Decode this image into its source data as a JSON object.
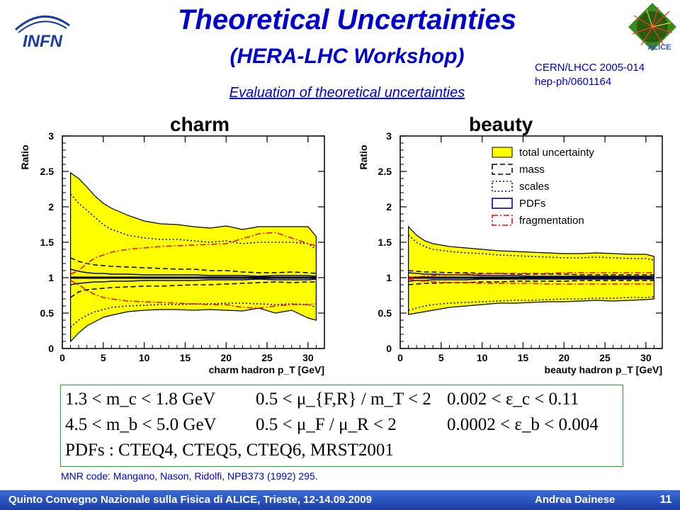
{
  "header": {
    "title": "Theoretical Uncertainties",
    "subtitle": "(HERA-LHC Workshop)",
    "subheading": "Evaluation of theoretical uncertainties",
    "ref_line1": "CERN/LHCC 2005-014",
    "ref_line2": "hep-ph/0601164",
    "logo_text": "INFN",
    "alice_logo_text": "ALICE"
  },
  "chart_data": [
    {
      "type": "area",
      "title": "charm",
      "xlabel": "charm hadron p_T [GeV]",
      "ylabel": "Ratio",
      "xlim": [
        0,
        32
      ],
      "ylim": [
        0,
        3
      ],
      "xticks": [
        0,
        5,
        10,
        15,
        20,
        25,
        30
      ],
      "yticks": [
        0,
        0.5,
        1,
        1.5,
        2,
        2.5,
        3
      ],
      "x": [
        1,
        2,
        3,
        4,
        5,
        6,
        8,
        10,
        12,
        14,
        16,
        18,
        20,
        22,
        24,
        26,
        28,
        30,
        31
      ],
      "series": [
        {
          "name": "total uncertainty",
          "style": "band",
          "upper": [
            2.48,
            2.4,
            2.28,
            2.15,
            2.05,
            1.98,
            1.88,
            1.8,
            1.76,
            1.75,
            1.72,
            1.7,
            1.73,
            1.68,
            1.72,
            1.72,
            1.72,
            1.72,
            1.58
          ],
          "lower": [
            0.1,
            0.22,
            0.32,
            0.38,
            0.44,
            0.47,
            0.52,
            0.54,
            0.55,
            0.55,
            0.54,
            0.55,
            0.54,
            0.53,
            0.57,
            0.5,
            0.54,
            0.43,
            0.4
          ]
        },
        {
          "name": "mass",
          "style": "dashed",
          "upper": [
            1.28,
            1.23,
            1.2,
            1.18,
            1.17,
            1.16,
            1.15,
            1.14,
            1.13,
            1.12,
            1.12,
            1.1,
            1.1,
            1.08,
            1.07,
            1.07,
            1.08,
            1.07,
            1.06
          ],
          "lower": [
            0.72,
            0.8,
            0.83,
            0.84,
            0.85,
            0.86,
            0.87,
            0.88,
            0.88,
            0.89,
            0.9,
            0.9,
            0.91,
            0.92,
            0.93,
            0.94,
            0.93,
            0.94,
            0.94
          ]
        },
        {
          "name": "scales",
          "style": "dotted",
          "upper": [
            2.18,
            2.05,
            1.95,
            1.85,
            1.75,
            1.68,
            1.6,
            1.56,
            1.54,
            1.54,
            1.52,
            1.5,
            1.52,
            1.48,
            1.5,
            1.5,
            1.5,
            1.48,
            1.4
          ],
          "lower": [
            0.3,
            0.4,
            0.47,
            0.52,
            0.55,
            0.58,
            0.6,
            0.61,
            0.62,
            0.62,
            0.63,
            0.63,
            0.64,
            0.64,
            0.63,
            0.62,
            0.63,
            0.62,
            0.58
          ]
        },
        {
          "name": "PDFs",
          "style": "solid",
          "upper": [
            1.12,
            1.09,
            1.07,
            1.06,
            1.06,
            1.05,
            1.05,
            1.04,
            1.04,
            1.04,
            1.04,
            1.03,
            1.03,
            1.03,
            1.02,
            1.03,
            1.03,
            1.03,
            1.02
          ],
          "lower": [
            0.9,
            0.92,
            0.93,
            0.94,
            0.94,
            0.95,
            0.95,
            0.96,
            0.96,
            0.96,
            0.96,
            0.97,
            0.97,
            0.97,
            0.98,
            0.97,
            0.97,
            0.97,
            0.98
          ]
        },
        {
          "name": "fragmentation",
          "style": "dashdot",
          "upper": [
            1.05,
            1.1,
            1.2,
            1.28,
            1.32,
            1.36,
            1.4,
            1.42,
            1.44,
            1.45,
            1.46,
            1.47,
            1.48,
            1.55,
            1.62,
            1.64,
            1.56,
            1.48,
            1.45
          ],
          "lower": [
            0.96,
            0.9,
            0.82,
            0.76,
            0.72,
            0.7,
            0.67,
            0.66,
            0.65,
            0.64,
            0.63,
            0.62,
            0.62,
            0.58,
            0.57,
            0.6,
            0.62,
            0.62,
            0.63
          ]
        }
      ]
    },
    {
      "type": "area",
      "title": "beauty",
      "xlabel": "beauty hadron p_T [GeV]",
      "ylabel": "Ratio",
      "xlim": [
        0,
        32
      ],
      "ylim": [
        0,
        3
      ],
      "xticks": [
        0,
        5,
        10,
        15,
        20,
        25,
        30
      ],
      "yticks": [
        0,
        0.5,
        1,
        1.5,
        2,
        2.5,
        3
      ],
      "legend": {
        "position": "top-right",
        "entries": [
          "total uncertainty",
          "mass",
          "scales",
          "PDFs",
          "fragmentation"
        ]
      },
      "x": [
        1,
        2,
        3,
        4,
        6,
        8,
        10,
        12,
        14,
        16,
        18,
        20,
        22,
        24,
        26,
        28,
        30,
        31
      ],
      "series": [
        {
          "name": "total uncertainty",
          "style": "band",
          "upper": [
            1.72,
            1.6,
            1.52,
            1.48,
            1.44,
            1.42,
            1.4,
            1.38,
            1.37,
            1.36,
            1.35,
            1.34,
            1.34,
            1.35,
            1.34,
            1.33,
            1.33,
            1.3
          ],
          "lower": [
            0.48,
            0.5,
            0.52,
            0.54,
            0.58,
            0.6,
            0.62,
            0.64,
            0.64,
            0.65,
            0.66,
            0.66,
            0.67,
            0.68,
            0.67,
            0.68,
            0.69,
            0.7
          ]
        },
        {
          "name": "mass",
          "style": "dashed",
          "upper": [
            1.1,
            1.09,
            1.08,
            1.08,
            1.07,
            1.07,
            1.06,
            1.06,
            1.05,
            1.05,
            1.05,
            1.05,
            1.04,
            1.04,
            1.04,
            1.04,
            1.04,
            1.04
          ],
          "lower": [
            0.9,
            0.91,
            0.92,
            0.92,
            0.93,
            0.93,
            0.94,
            0.94,
            0.95,
            0.95,
            0.95,
            0.95,
            0.96,
            0.96,
            0.96,
            0.96,
            0.96,
            0.96
          ]
        },
        {
          "name": "scales",
          "style": "dotted",
          "upper": [
            1.6,
            1.5,
            1.44,
            1.4,
            1.37,
            1.35,
            1.34,
            1.32,
            1.31,
            1.3,
            1.29,
            1.28,
            1.28,
            1.29,
            1.28,
            1.27,
            1.27,
            1.25
          ],
          "lower": [
            0.54,
            0.57,
            0.6,
            0.62,
            0.64,
            0.65,
            0.66,
            0.67,
            0.68,
            0.68,
            0.69,
            0.7,
            0.7,
            0.71,
            0.71,
            0.72,
            0.72,
            0.73
          ]
        },
        {
          "name": "PDFs",
          "style": "solid",
          "upper": [
            1.07,
            1.06,
            1.05,
            1.05,
            1.04,
            1.04,
            1.03,
            1.03,
            1.03,
            1.02,
            1.02,
            1.02,
            1.02,
            1.02,
            1.02,
            1.02,
            1.02,
            1.02
          ],
          "lower": [
            0.95,
            0.96,
            0.96,
            0.97,
            0.97,
            0.97,
            0.98,
            0.98,
            0.98,
            0.98,
            0.98,
            0.98,
            0.98,
            0.98,
            0.98,
            0.98,
            0.98,
            0.98
          ]
        },
        {
          "name": "fragmentation",
          "style": "dashdot",
          "upper": [
            1.0,
            1.01,
            1.02,
            1.03,
            1.04,
            1.05,
            1.05,
            1.06,
            1.06,
            1.06,
            1.06,
            1.07,
            1.07,
            1.07,
            1.07,
            1.07,
            1.07,
            1.07
          ],
          "lower": [
            0.98,
            0.96,
            0.95,
            0.94,
            0.93,
            0.93,
            0.92,
            0.92,
            0.92,
            0.92,
            0.91,
            0.91,
            0.91,
            0.91,
            0.91,
            0.91,
            0.91,
            0.91
          ]
        }
      ]
    }
  ],
  "colors": {
    "band": "#ffff00",
    "fragmentation": "#ff0000",
    "scales": "#0000cc",
    "pdfs": "#0000aa",
    "title": "#0000cc"
  },
  "formula": {
    "row1": {
      "mass": "1.3 < m_c < 1.8 GeV",
      "scale": "0.5 < μ_{F,R} / m_T < 2",
      "eps": "0.002 < ε_c < 0.11"
    },
    "row2": {
      "mass": "4.5 < m_b < 5.0 GeV",
      "scale": "0.5 < μ_F / μ_R < 2",
      "eps": "0.0002 < ε_b < 0.004"
    },
    "row3": "PDFs : CTEQ4, CTEQ5, CTEQ6, MRST2001"
  },
  "footer": {
    "reference": "MNR code: Mangano, Nason, Ridolfi, NPB373 (1992) 295.",
    "left": "Quinto Convegno Nazionale sulla Fisica di ALICE, Trieste, 12-14.09.2009",
    "right": "Andrea Dainese",
    "page": "11"
  }
}
